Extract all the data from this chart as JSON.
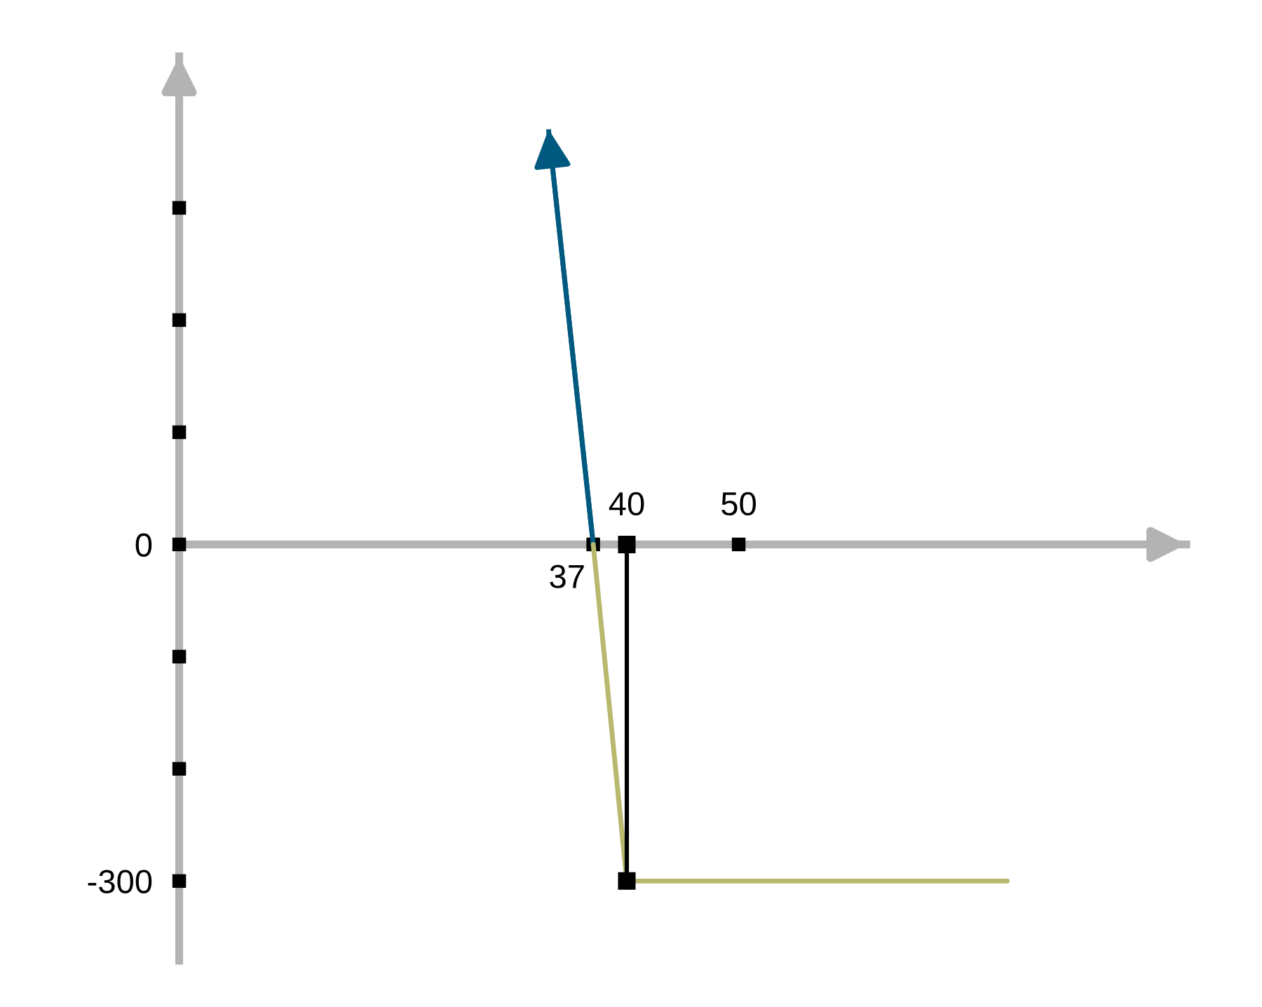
{
  "chart_data": {
    "type": "line",
    "series": [
      {
        "color": "#005a7f",
        "x": [
          37,
          33
        ],
        "values": [
          0,
          370
        ]
      },
      {
        "color": "#b8b86e",
        "x": [
          37,
          40,
          74
        ],
        "values": [
          0,
          -300,
          -300
        ]
      },
      {
        "color": "#000000",
        "x": [
          40,
          40
        ],
        "values": [
          0,
          -300
        ],
        "marker": "square"
      }
    ],
    "xlim": [
      0,
      90
    ],
    "xticks": [
      {
        "value": 37,
        "label": null
      },
      40,
      50
    ],
    "annotations": [
      {
        "text": "37",
        "x": 37,
        "y": 0
      }
    ],
    "ylim": [
      -371,
      435
    ],
    "yticks": [
      {
        "value": -300,
        "label": "-300"
      },
      {
        "value": -200,
        "label": null
      },
      {
        "value": -100,
        "label": null
      },
      0,
      {
        "value": 100,
        "label": null
      },
      {
        "value": 200,
        "label": null
      },
      {
        "value": 300,
        "label": null
      }
    ],
    "grid": false,
    "legend": false
  }
}
